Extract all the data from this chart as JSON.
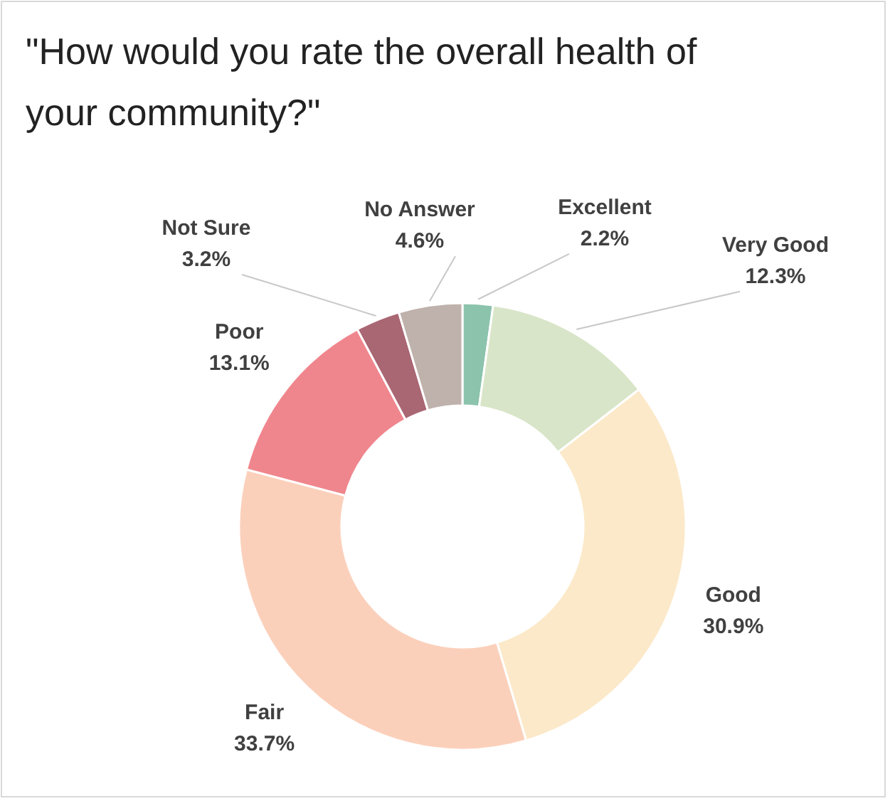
{
  "chart_data": {
    "type": "donut",
    "title": "\"How would you rate the overall health of your community?\"",
    "categories": [
      "Excellent",
      "Very Good",
      "Good",
      "Fair",
      "Poor",
      "Not Sure",
      "No Answer"
    ],
    "values": [
      2.2,
      12.3,
      30.9,
      33.7,
      13.1,
      3.2,
      4.6
    ],
    "value_labels": [
      "2.2%",
      "12.3%",
      "30.9%",
      "33.7%",
      "13.1%",
      "3.2%",
      "4.6%"
    ],
    "colors": [
      "#8cc3ad",
      "#d9e5c8",
      "#fbe9c9",
      "#fbd0bb",
      "#f0868d",
      "#a96673",
      "#bfb1ab"
    ]
  }
}
